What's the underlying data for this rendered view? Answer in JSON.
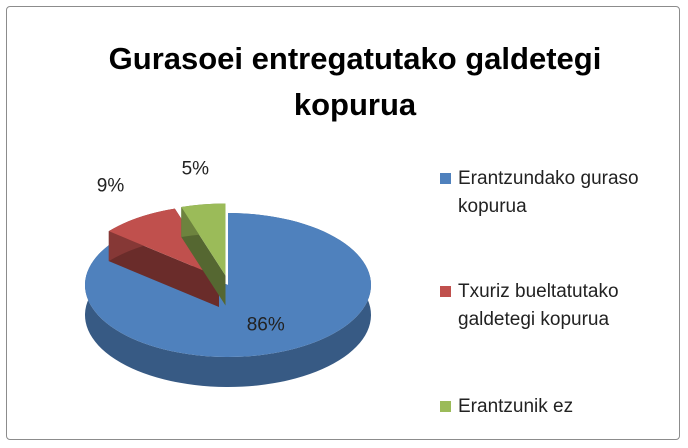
{
  "chart_data": {
    "type": "pie",
    "title": "Gurasoei entregatutako galdetegi kopurua",
    "categories": [
      "Erantzundako guraso kopurua",
      "Txuriz bueltatutako galdetegi kopurua",
      "Erantzunik ez"
    ],
    "values": [
      86,
      9,
      5
    ],
    "value_labels": [
      "86%",
      "9%",
      "5%"
    ],
    "colors": [
      "#4f81bd",
      "#c0504d",
      "#9bbb59"
    ],
    "legend": "right"
  }
}
